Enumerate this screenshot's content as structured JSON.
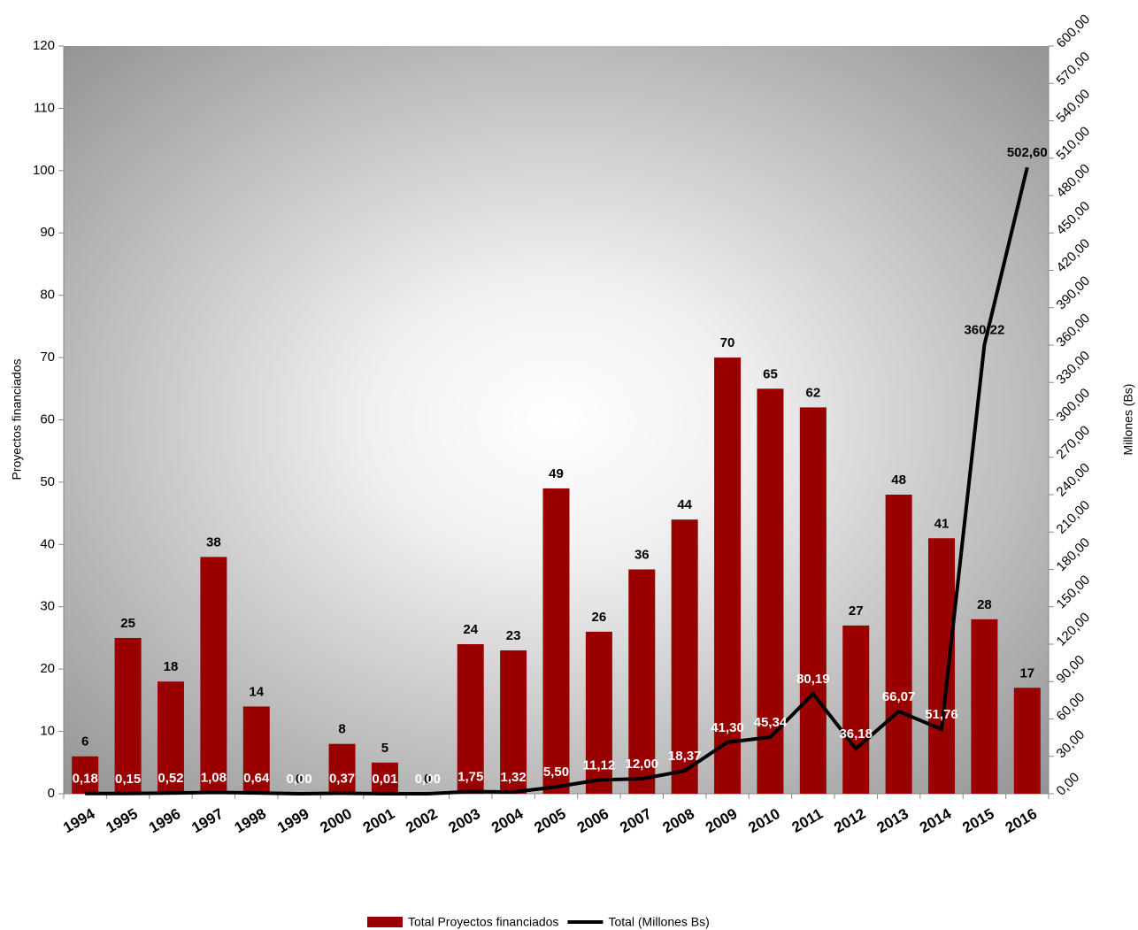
{
  "chart_data": {
    "type": "bar_line",
    "y_label": "Proyectos financiados",
    "y2_label": "Millones (Bs)",
    "categories": [
      "1994",
      "1995",
      "1996",
      "1997",
      "1998",
      "1999",
      "2000",
      "2001",
      "2002",
      "2003",
      "2004",
      "2005",
      "2006",
      "2007",
      "2008",
      "2009",
      "2010",
      "2011",
      "2012",
      "2013",
      "2014",
      "2015",
      "2016"
    ],
    "series": [
      {
        "name": "Total Proyectos financiados",
        "type": "bar",
        "color": "#990000",
        "values": [
          6,
          25,
          18,
          38,
          14,
          0,
          8,
          5,
          0,
          24,
          23,
          49,
          26,
          36,
          44,
          70,
          65,
          62,
          27,
          48,
          41,
          28,
          17
        ]
      },
      {
        "name": "Total (Millones Bs)",
        "type": "line",
        "color": "#000000",
        "axis": "y2",
        "values": [
          0.18,
          0.15,
          0.52,
          1.08,
          0.64,
          0.0,
          0.37,
          0.01,
          0.0,
          1.75,
          1.32,
          5.5,
          11.12,
          12.0,
          18.37,
          41.3,
          45.34,
          80.19,
          36.18,
          66.07,
          51.76,
          360.22,
          502.6
        ],
        "value_labels": [
          "0,18",
          "0,15",
          "0,52",
          "1,08",
          "0,64",
          "0,00",
          "0,37",
          "0,01",
          "0,00",
          "1,75",
          "1,32",
          "5,50",
          "11,12",
          "12,00",
          "18,37",
          "41,30",
          "45,34",
          "80,19",
          "36,18",
          "66,07",
          "51,76",
          "360,22",
          "502,60"
        ]
      }
    ],
    "ylim": [
      0,
      120
    ],
    "yticks": [
      0,
      10,
      20,
      30,
      40,
      50,
      60,
      70,
      80,
      90,
      100,
      110,
      120
    ],
    "y2lim": [
      0,
      600
    ],
    "y2ticks": [
      {
        "value": 0,
        "label": "0,00"
      },
      {
        "value": 30,
        "label": "30,00"
      },
      {
        "value": 60,
        "label": "60,00"
      },
      {
        "value": 90,
        "label": "90,00"
      },
      {
        "value": 120,
        "label": "120,00"
      },
      {
        "value": 150,
        "label": "150,00"
      },
      {
        "value": 180,
        "label": "180,00"
      },
      {
        "value": 210,
        "label": "210,00"
      },
      {
        "value": 240,
        "label": "240,00"
      },
      {
        "value": 270,
        "label": "270,00"
      },
      {
        "value": 300,
        "label": "300,00"
      },
      {
        "value": 330,
        "label": "330,00"
      },
      {
        "value": 360,
        "label": "360,00"
      },
      {
        "value": 390,
        "label": "390,00"
      },
      {
        "value": 420,
        "label": "420,00"
      },
      {
        "value": 450,
        "label": "450,00"
      },
      {
        "value": 480,
        "label": "480,00"
      },
      {
        "value": 510,
        "label": "510,00"
      },
      {
        "value": 540,
        "label": "540,00"
      },
      {
        "value": 570,
        "label": "570,00"
      },
      {
        "value": 600,
        "label": "600,00"
      }
    ],
    "legend": "bottom",
    "grid": false
  }
}
